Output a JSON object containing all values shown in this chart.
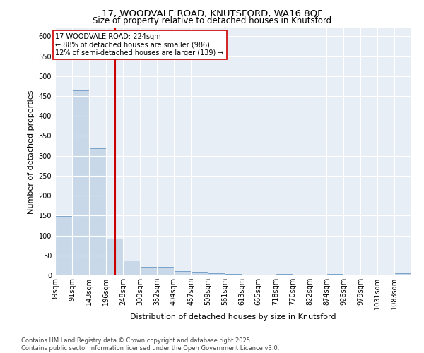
{
  "title_line1": "17, WOODVALE ROAD, KNUTSFORD, WA16 8QF",
  "title_line2": "Size of property relative to detached houses in Knutsford",
  "xlabel": "Distribution of detached houses by size in Knutsford",
  "ylabel": "Number of detached properties",
  "bin_labels": [
    "39sqm",
    "91sqm",
    "143sqm",
    "196sqm",
    "248sqm",
    "300sqm",
    "352sqm",
    "404sqm",
    "457sqm",
    "509sqm",
    "561sqm",
    "613sqm",
    "665sqm",
    "718sqm",
    "770sqm",
    "822sqm",
    "874sqm",
    "926sqm",
    "979sqm",
    "1031sqm",
    "1083sqm"
  ],
  "bin_edges": [
    39,
    91,
    143,
    196,
    248,
    300,
    352,
    404,
    457,
    509,
    561,
    613,
    665,
    718,
    770,
    822,
    874,
    926,
    979,
    1031,
    1083
  ],
  "bar_heights": [
    148,
    465,
    318,
    93,
    37,
    22,
    21,
    11,
    8,
    5,
    4,
    0,
    0,
    4,
    0,
    0,
    4,
    0,
    0,
    0,
    5
  ],
  "bar_color": "#c8d8e8",
  "bar_edge_color": "#5588bb",
  "property_value": 224,
  "vline_color": "#cc0000",
  "annotation_text": "17 WOODVALE ROAD: 224sqm\n← 88% of detached houses are smaller (986)\n12% of semi-detached houses are larger (139) →",
  "annotation_box_color": "white",
  "annotation_box_edge_color": "#cc0000",
  "ylim": [
    0,
    620
  ],
  "yticks": [
    0,
    50,
    100,
    150,
    200,
    250,
    300,
    350,
    400,
    450,
    500,
    550,
    600
  ],
  "background_color": "#e8eef6",
  "grid_color": "white",
  "footer_text": "Contains HM Land Registry data © Crown copyright and database right 2025.\nContains public sector information licensed under the Open Government Licence v3.0.",
  "title_fontsize": 9.5,
  "subtitle_fontsize": 8.5,
  "axis_label_fontsize": 8,
  "tick_fontsize": 7,
  "annotation_fontsize": 7,
  "footer_fontsize": 6
}
